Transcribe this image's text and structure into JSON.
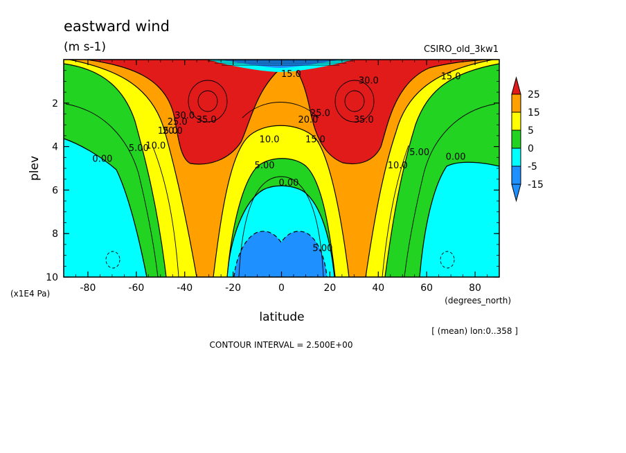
{
  "chart_data": {
    "type": "contour",
    "title": "eastward wind",
    "units": "(m s-1)",
    "dataset": "CSIRO_old_3kw1",
    "xlabel": "latitude",
    "xunits": "(degrees_north)",
    "ylabel": "plev",
    "yunits": "(x1E4 Pa)",
    "xlim": [
      -90,
      90
    ],
    "ylim": [
      0,
      10
    ],
    "y_inverted": true,
    "x_ticks": [
      "-80",
      "-60",
      "-40",
      "-20",
      "0",
      "20",
      "40",
      "60",
      "80"
    ],
    "y_ticks": [
      "2",
      "4",
      "6",
      "8",
      "10"
    ],
    "note": "[ (mean) lon:0..358 ]",
    "contour_interval": "CONTOUR INTERVAL = 2.500E+00",
    "legend_levels": [
      "25",
      "15",
      "5",
      "0",
      "-5",
      "-15"
    ],
    "colorbar": [
      {
        "color": "#e11a1a"
      },
      {
        "color": "#ffa000"
      },
      {
        "color": "#ffff00"
      },
      {
        "color": "#22d322"
      },
      {
        "color": "#00ffff"
      },
      {
        "color": "#1e90ff"
      }
    ],
    "contour_labels": [
      {
        "text": "35.0",
        "x": -31,
        "y": 2.9
      },
      {
        "text": "35.0",
        "x": 34,
        "y": 2.9
      },
      {
        "text": "30.0",
        "x": 36,
        "y": 1.1
      },
      {
        "text": "30.0",
        "x": -40,
        "y": 2.7
      },
      {
        "text": "25.0",
        "x": -43,
        "y": 3.0
      },
      {
        "text": "20.0",
        "x": -45,
        "y": 3.4
      },
      {
        "text": "15.0",
        "x": -47,
        "y": 3.4
      },
      {
        "text": "10.0",
        "x": -52,
        "y": 4.1
      },
      {
        "text": "5.00",
        "x": -59,
        "y": 4.2
      },
      {
        "text": "0.00",
        "x": -74,
        "y": 4.7
      },
      {
        "text": "10.0",
        "x": -5,
        "y": 3.8
      },
      {
        "text": "5.00",
        "x": -7,
        "y": 5.0
      },
      {
        "text": "0.00",
        "x": 3,
        "y": 5.8
      },
      {
        "text": "20.0",
        "x": 11,
        "y": 2.9
      },
      {
        "text": "25.0",
        "x": 16,
        "y": 2.6
      },
      {
        "text": "15.0",
        "x": 14,
        "y": 3.8
      },
      {
        "text": "10.0",
        "x": 48,
        "y": 5.0
      },
      {
        "text": "5.00",
        "x": 57,
        "y": 4.4
      },
      {
        "text": "0.00",
        "x": 72,
        "y": 4.6
      },
      {
        "text": "15.0",
        "x": 70,
        "y": 0.9
      },
      {
        "text": "15.0",
        "x": 4,
        "y": 0.8
      },
      {
        "text": "5.00",
        "x": 17,
        "y": 8.8
      }
    ]
  }
}
